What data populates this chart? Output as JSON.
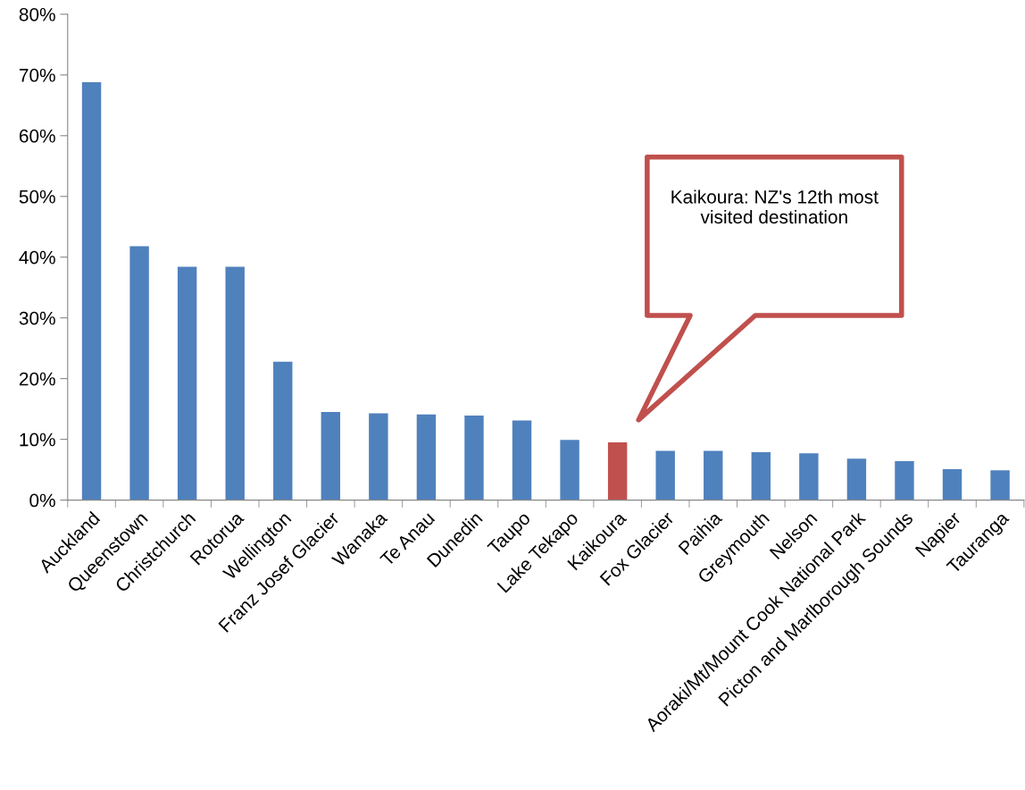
{
  "chart_data": {
    "type": "bar",
    "categories": [
      "Auckland",
      "Queenstown",
      "Christchurch",
      "Rotorua",
      "Wellington",
      "Franz Josef Glacier",
      "Wanaka",
      "Te Anau",
      "Dunedin",
      "Taupo",
      "Lake Tekapo",
      "Kaikoura",
      "Fox Glacier",
      "Paihia",
      "Greymouth",
      "Nelson",
      "Aoraki/Mt/Mount Cook National Park",
      "Picton and Marlborough Sounds",
      "Napier",
      "Tauranga"
    ],
    "values": [
      68.8,
      41.8,
      38.4,
      38.4,
      22.8,
      14.5,
      14.3,
      14.1,
      13.9,
      13.1,
      9.9,
      9.5,
      8.1,
      8.1,
      7.9,
      7.7,
      6.8,
      6.4,
      5.1,
      4.9
    ],
    "colors": [
      "#4f81bd",
      "#4f81bd",
      "#4f81bd",
      "#4f81bd",
      "#4f81bd",
      "#4f81bd",
      "#4f81bd",
      "#4f81bd",
      "#4f81bd",
      "#4f81bd",
      "#4f81bd",
      "#c0504d",
      "#4f81bd",
      "#4f81bd",
      "#4f81bd",
      "#4f81bd",
      "#4f81bd",
      "#4f81bd",
      "#4f81bd",
      "#4f81bd"
    ],
    "ylim": [
      0,
      80
    ],
    "yticks": [
      {
        "value": 0,
        "label": "0%"
      },
      {
        "value": 10,
        "label": "10%"
      },
      {
        "value": 20,
        "label": "20%"
      },
      {
        "value": 30,
        "label": "30%"
      },
      {
        "value": 40,
        "label": "40%"
      },
      {
        "value": 50,
        "label": "50%"
      },
      {
        "value": 60,
        "label": "60%"
      },
      {
        "value": 70,
        "label": "70%"
      },
      {
        "value": 80,
        "label": "80%"
      }
    ],
    "grid": false,
    "legend": false,
    "annotations": [
      "Kaikoura: NZ's 12th most\nvisited destination"
    ]
  }
}
